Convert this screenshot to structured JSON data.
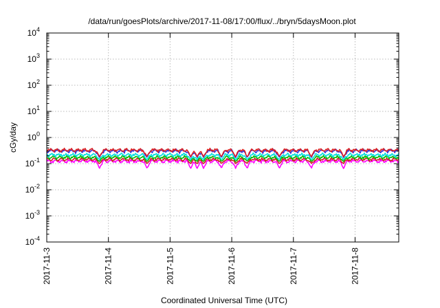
{
  "chart_data": {
    "type": "line",
    "title": "/data/run/goesPlots/archive/2017-11-08/17:00/flux/../bryn/5daysMoon.plot",
    "xlabel": "Coordinated Universal Time (UTC)",
    "ylabel": "cGy/day",
    "y_scale": "log",
    "xlim": [
      "2017-11-03T00:00",
      "2017-11-08T17:00"
    ],
    "ylim": [
      0.0001,
      10000
    ],
    "grid": true,
    "x_ticks": [
      "2017-11-3",
      "2017-11-4",
      "2017-11-5",
      "2017-11-6",
      "2017-11-7",
      "2017-11-8"
    ],
    "y_ticks": [
      {
        "value": 0.0001,
        "base": "10",
        "exp": "-4"
      },
      {
        "value": 0.001,
        "base": "10",
        "exp": "-3"
      },
      {
        "value": 0.01,
        "base": "10",
        "exp": "-2"
      },
      {
        "value": 0.1,
        "base": "10",
        "exp": "-1"
      },
      {
        "value": 1,
        "base": "10",
        "exp": "0"
      },
      {
        "value": 10,
        "base": "10",
        "exp": "1"
      },
      {
        "value": 100,
        "base": "10",
        "exp": "2"
      },
      {
        "value": 1000,
        "base": "10",
        "exp": "3"
      },
      {
        "value": 10000,
        "base": "10",
        "exp": "4"
      }
    ],
    "dip_times": [
      "2017-11-03T20:30",
      "2017-11-04T15:00",
      "2017-11-05T08:00",
      "2017-11-05T10:30",
      "2017-11-05T13:00",
      "2017-11-05T20:00",
      "2017-11-06T01:30",
      "2017-11-06T06:00",
      "2017-11-06T18:30",
      "2017-11-07T07:00",
      "2017-11-07T19:30"
    ],
    "series": [
      {
        "color": "#ff00ff",
        "base": 0.125,
        "dip_min": 0.065
      },
      {
        "color": "#cc2020",
        "base": 0.145,
        "dip_min": 0.1
      },
      {
        "color": "#00bb00",
        "base": 0.175,
        "dip_min": 0.12
      },
      {
        "color": "#00dddd",
        "base": 0.215,
        "dip_min": 0.14
      },
      {
        "color": "#3333dd",
        "base": 0.305,
        "dip_min": 0.17
      },
      {
        "color": "#dd2222",
        "base": 0.33,
        "dip_min": 0.18
      }
    ]
  }
}
